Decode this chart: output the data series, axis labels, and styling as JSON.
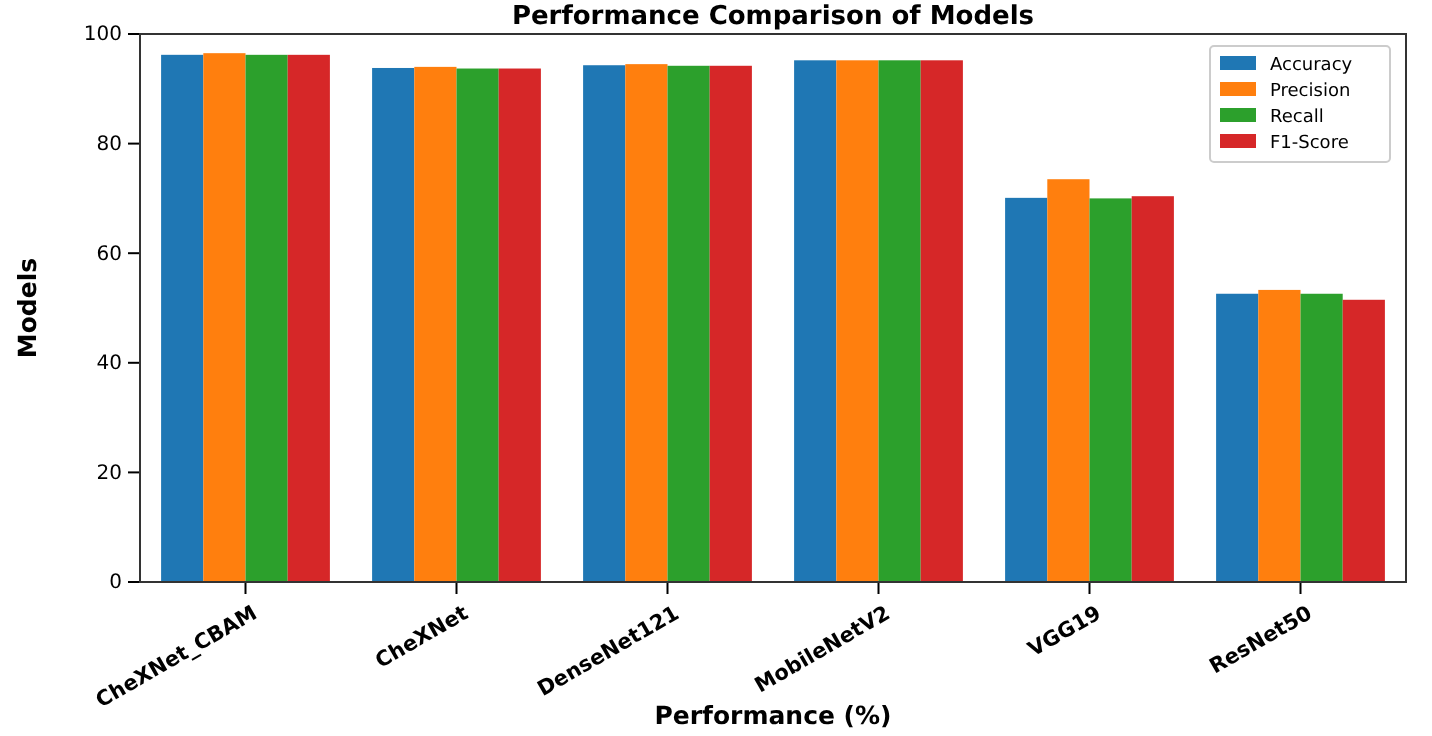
{
  "chart_data": {
    "type": "bar",
    "title": "Performance Comparison of Models",
    "xlabel": "Performance (%)",
    "ylabel": "Models",
    "categories": [
      "CheXNet_CBAM",
      "CheXNet",
      "DenseNet121",
      "MobileNetV2",
      "VGG19",
      "ResNet50"
    ],
    "series": [
      {
        "name": "Accuracy",
        "color": "#1f77b4",
        "values": [
          96.2,
          93.8,
          94.3,
          95.2,
          70.1,
          52.6
        ]
      },
      {
        "name": "Precision",
        "color": "#ff7f0e",
        "values": [
          96.5,
          94.0,
          94.5,
          95.2,
          73.5,
          53.3
        ]
      },
      {
        "name": "Recall",
        "color": "#2ca02c",
        "values": [
          96.2,
          93.7,
          94.2,
          95.2,
          70.0,
          52.6
        ]
      },
      {
        "name": "F1-Score",
        "color": "#d62728",
        "values": [
          96.2,
          93.7,
          94.2,
          95.2,
          70.4,
          51.5
        ]
      }
    ],
    "ylim": [
      0,
      100
    ],
    "yticks": [
      0,
      20,
      40,
      60,
      80,
      100
    ],
    "legend": "top right"
  }
}
